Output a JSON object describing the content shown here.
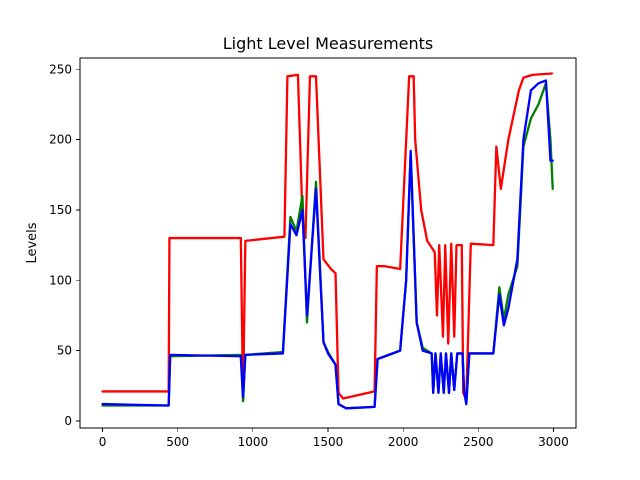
{
  "chart_data": {
    "type": "line",
    "title": "Light Level Measurements",
    "xlabel": "",
    "ylabel": "Levels",
    "xlim": [
      -150,
      3150
    ],
    "ylim": [
      -5,
      258
    ],
    "xticks": [
      0,
      500,
      1000,
      1500,
      2000,
      2500,
      3000
    ],
    "yticks": [
      0,
      50,
      100,
      150,
      200,
      250
    ],
    "grid": false,
    "series": [
      {
        "color": "#ff0000",
        "points": [
          [
            0,
            21
          ],
          [
            440,
            21
          ],
          [
            445,
            130
          ],
          [
            920,
            130
          ],
          [
            935,
            15
          ],
          [
            950,
            128
          ],
          [
            1210,
            131
          ],
          [
            1230,
            245
          ],
          [
            1300,
            246
          ],
          [
            1330,
            145
          ],
          [
            1350,
            130
          ],
          [
            1380,
            245
          ],
          [
            1420,
            245
          ],
          [
            1470,
            115
          ],
          [
            1520,
            108
          ],
          [
            1550,
            105
          ],
          [
            1570,
            20
          ],
          [
            1600,
            16
          ],
          [
            1810,
            21
          ],
          [
            1825,
            110
          ],
          [
            1880,
            110
          ],
          [
            1980,
            108
          ],
          [
            2040,
            245
          ],
          [
            2070,
            245
          ],
          [
            2080,
            200
          ],
          [
            2120,
            150
          ],
          [
            2160,
            128
          ],
          [
            2210,
            120
          ],
          [
            2225,
            75
          ],
          [
            2240,
            125
          ],
          [
            2265,
            60
          ],
          [
            2280,
            125
          ],
          [
            2300,
            55
          ],
          [
            2320,
            126
          ],
          [
            2340,
            60
          ],
          [
            2355,
            125
          ],
          [
            2390,
            125
          ],
          [
            2400,
            20
          ],
          [
            2420,
            15
          ],
          [
            2450,
            126
          ],
          [
            2600,
            125
          ],
          [
            2620,
            195
          ],
          [
            2650,
            165
          ],
          [
            2700,
            200
          ],
          [
            2720,
            210
          ],
          [
            2770,
            235
          ],
          [
            2800,
            244
          ],
          [
            2860,
            246
          ],
          [
            2990,
            247
          ]
        ]
      },
      {
        "color": "#008000",
        "points": [
          [
            0,
            11
          ],
          [
            440,
            11
          ],
          [
            450,
            46
          ],
          [
            920,
            47
          ],
          [
            935,
            14
          ],
          [
            950,
            47
          ],
          [
            1200,
            49
          ],
          [
            1250,
            145
          ],
          [
            1290,
            135
          ],
          [
            1330,
            160
          ],
          [
            1360,
            70
          ],
          [
            1420,
            170
          ],
          [
            1470,
            56
          ],
          [
            1500,
            49
          ],
          [
            1550,
            40
          ],
          [
            1570,
            12
          ],
          [
            1620,
            9
          ],
          [
            1810,
            10
          ],
          [
            1830,
            44
          ],
          [
            1980,
            50
          ],
          [
            2020,
            100
          ],
          [
            2050,
            190
          ],
          [
            2090,
            70
          ],
          [
            2130,
            52
          ],
          [
            2190,
            48
          ],
          [
            2200,
            20
          ],
          [
            2215,
            48
          ],
          [
            2235,
            20
          ],
          [
            2250,
            48
          ],
          [
            2270,
            20
          ],
          [
            2285,
            48
          ],
          [
            2305,
            20
          ],
          [
            2320,
            48
          ],
          [
            2340,
            22
          ],
          [
            2360,
            48
          ],
          [
            2395,
            48
          ],
          [
            2405,
            22
          ],
          [
            2420,
            12
          ],
          [
            2440,
            48
          ],
          [
            2600,
            48
          ],
          [
            2640,
            95
          ],
          [
            2670,
            72
          ],
          [
            2700,
            90
          ],
          [
            2760,
            110
          ],
          [
            2800,
            195
          ],
          [
            2850,
            215
          ],
          [
            2900,
            225
          ],
          [
            2950,
            240
          ],
          [
            2980,
            200
          ],
          [
            2995,
            165
          ]
        ]
      },
      {
        "color": "#0000ff",
        "points": [
          [
            0,
            12
          ],
          [
            440,
            11
          ],
          [
            450,
            47
          ],
          [
            920,
            46
          ],
          [
            935,
            17
          ],
          [
            950,
            47
          ],
          [
            1200,
            48
          ],
          [
            1250,
            140
          ],
          [
            1290,
            132
          ],
          [
            1330,
            150
          ],
          [
            1360,
            75
          ],
          [
            1420,
            165
          ],
          [
            1470,
            56
          ],
          [
            1500,
            48
          ],
          [
            1550,
            40
          ],
          [
            1570,
            12
          ],
          [
            1620,
            9
          ],
          [
            1810,
            10
          ],
          [
            1830,
            44
          ],
          [
            1980,
            50
          ],
          [
            2020,
            100
          ],
          [
            2050,
            192
          ],
          [
            2090,
            70
          ],
          [
            2130,
            50
          ],
          [
            2190,
            48
          ],
          [
            2200,
            20
          ],
          [
            2215,
            48
          ],
          [
            2235,
            20
          ],
          [
            2250,
            48
          ],
          [
            2270,
            20
          ],
          [
            2285,
            48
          ],
          [
            2305,
            20
          ],
          [
            2320,
            48
          ],
          [
            2340,
            22
          ],
          [
            2360,
            48
          ],
          [
            2395,
            48
          ],
          [
            2405,
            22
          ],
          [
            2420,
            12
          ],
          [
            2440,
            48
          ],
          [
            2600,
            48
          ],
          [
            2640,
            90
          ],
          [
            2670,
            68
          ],
          [
            2700,
            80
          ],
          [
            2760,
            115
          ],
          [
            2800,
            200
          ],
          [
            2850,
            235
          ],
          [
            2900,
            240
          ],
          [
            2950,
            242
          ],
          [
            2980,
            185
          ],
          [
            2995,
            185
          ]
        ]
      }
    ]
  }
}
